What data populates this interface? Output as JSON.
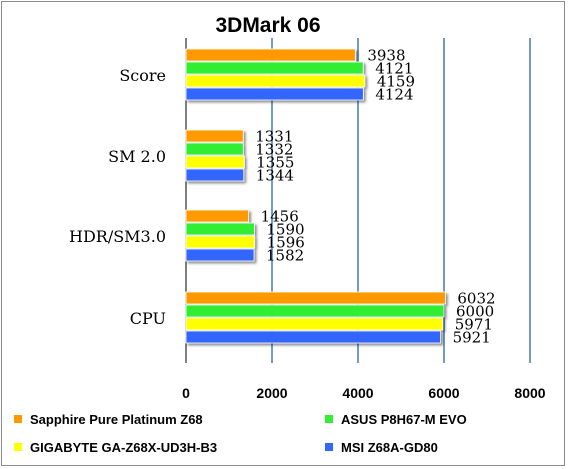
{
  "chart_data": {
    "type": "bar",
    "orientation": "horizontal",
    "title": "3DMark 06",
    "categories": [
      "Score",
      "SM 2.0",
      "HDR/SM3.0",
      "CPU"
    ],
    "series": [
      {
        "name": "Sapphire Pure Platinum  Z68",
        "color": "#ff9900",
        "values": [
          3938,
          1331,
          1456,
          6032
        ]
      },
      {
        "name": "ASUS P8H67-M EVO",
        "color": "#33ee33",
        "values": [
          4121,
          1332,
          1590,
          6000
        ]
      },
      {
        "name": "GIGABYTE GA-Z68X-UD3H-B3",
        "color": "#ffff00",
        "values": [
          4159,
          1355,
          1596,
          5971
        ]
      },
      {
        "name": "MSI Z68A-GD80",
        "color": "#3366ff",
        "values": [
          4124,
          1344,
          1582,
          5921
        ]
      }
    ],
    "xlim": [
      0,
      8000
    ],
    "xticks": [
      "0",
      "2000",
      "4000",
      "6000",
      "8000"
    ],
    "grid": true,
    "legend_position": "bottom"
  }
}
